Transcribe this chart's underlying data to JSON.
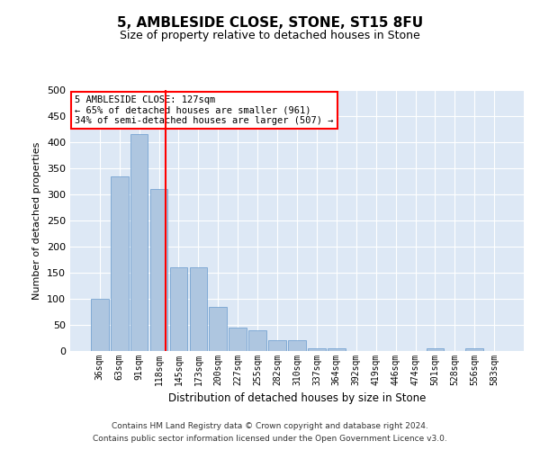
{
  "title": "5, AMBLESIDE CLOSE, STONE, ST15 8FU",
  "subtitle": "Size of property relative to detached houses in Stone",
  "xlabel": "Distribution of detached houses by size in Stone",
  "ylabel": "Number of detached properties",
  "bar_color": "#aec6e0",
  "bar_edge_color": "#6699cc",
  "bg_color": "#dde8f5",
  "grid_color": "white",
  "categories": [
    "36sqm",
    "63sqm",
    "91sqm",
    "118sqm",
    "145sqm",
    "173sqm",
    "200sqm",
    "227sqm",
    "255sqm",
    "282sqm",
    "310sqm",
    "337sqm",
    "364sqm",
    "392sqm",
    "419sqm",
    "446sqm",
    "474sqm",
    "501sqm",
    "528sqm",
    "556sqm",
    "583sqm"
  ],
  "values": [
    100,
    335,
    415,
    310,
    160,
    160,
    85,
    45,
    40,
    20,
    20,
    5,
    5,
    0,
    0,
    0,
    0,
    5,
    0,
    5,
    0
  ],
  "vline_color": "red",
  "annotation_text": "5 AMBLESIDE CLOSE: 127sqm\n← 65% of detached houses are smaller (961)\n34% of semi-detached houses are larger (507) →",
  "annotation_box_color": "white",
  "annotation_box_edgecolor": "red",
  "ylim": [
    0,
    500
  ],
  "yticks": [
    0,
    50,
    100,
    150,
    200,
    250,
    300,
    350,
    400,
    450,
    500
  ],
  "footnote1": "Contains HM Land Registry data © Crown copyright and database right 2024.",
  "footnote2": "Contains public sector information licensed under the Open Government Licence v3.0."
}
